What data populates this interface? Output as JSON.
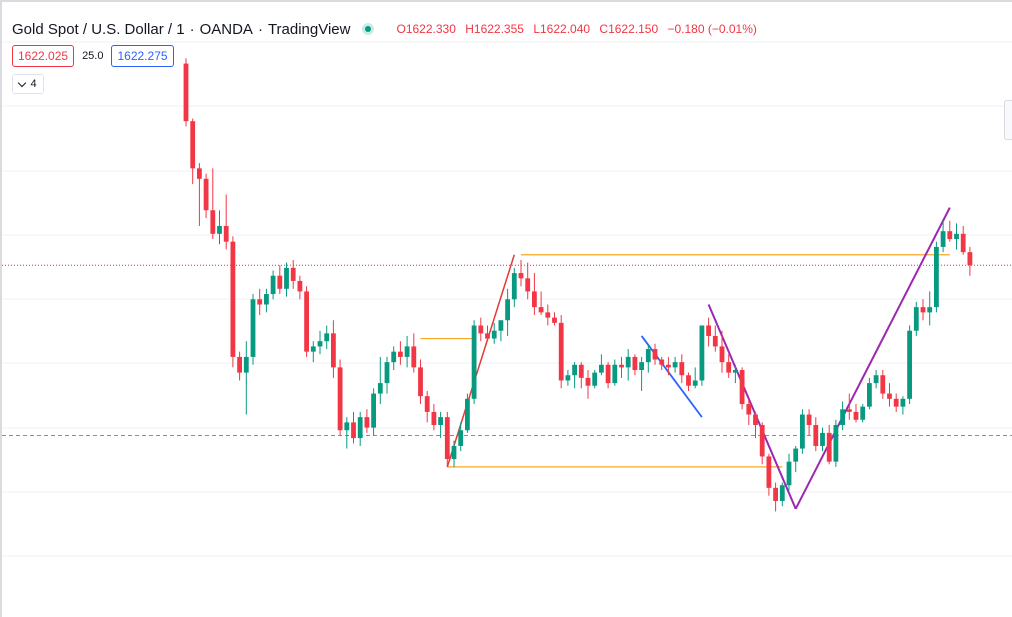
{
  "header": {
    "symbol": "Gold Spot / U.S. Dollar",
    "interval": "1",
    "broker": "OANDA",
    "platform": "TradingView",
    "separator": "·",
    "ohlc": [
      {
        "key": "O",
        "value": "1622.330"
      },
      {
        "key": "H",
        "value": "1622.355"
      },
      {
        "key": "L",
        "value": "1622.040"
      },
      {
        "key": "C",
        "value": "1622.150"
      }
    ],
    "change": "−0.180 (−0.01%)"
  },
  "trade": {
    "sell_price": "1622.025",
    "spread": "25.0",
    "buy_price": "1622.275"
  },
  "indicators": {
    "count": "4"
  },
  "colors": {
    "up": "#089981",
    "down": "#f23645",
    "orange": "#f5a623",
    "purple": "#9c27b0",
    "blue": "#2962ff",
    "red_line": "#e53935",
    "grid": "#eef0f3"
  },
  "chart_data": {
    "type": "candlestick",
    "grid": true,
    "candles": [
      [
        1629.6,
        1629.8,
        1627.2,
        1627.4
      ],
      [
        1627.4,
        1627.5,
        1625.0,
        1625.6
      ],
      [
        1625.6,
        1625.8,
        1623.4,
        1625.2
      ],
      [
        1625.2,
        1625.4,
        1623.7,
        1624.0
      ],
      [
        1624.0,
        1625.6,
        1622.9,
        1623.1
      ],
      [
        1623.1,
        1624.0,
        1622.7,
        1623.4
      ],
      [
        1623.4,
        1624.6,
        1622.5,
        1622.8
      ],
      [
        1622.8,
        1623.0,
        1618.0,
        1618.4
      ],
      [
        1618.4,
        1618.6,
        1617.5,
        1617.8
      ],
      [
        1617.8,
        1619.0,
        1616.2,
        1618.4
      ],
      [
        1618.4,
        1620.8,
        1618.1,
        1620.6
      ],
      [
        1620.6,
        1621.0,
        1620.0,
        1620.4
      ],
      [
        1620.4,
        1621.0,
        1620.1,
        1620.8
      ],
      [
        1620.8,
        1621.7,
        1620.6,
        1621.5
      ],
      [
        1621.5,
        1621.9,
        1620.8,
        1621.0
      ],
      [
        1621.0,
        1622.0,
        1620.7,
        1621.8
      ],
      [
        1621.8,
        1622.1,
        1621.0,
        1621.3
      ],
      [
        1621.3,
        1621.5,
        1620.6,
        1620.9
      ],
      [
        1620.9,
        1621.1,
        1618.4,
        1618.6
      ],
      [
        1618.6,
        1619.0,
        1618.2,
        1618.8
      ],
      [
        1618.8,
        1619.4,
        1618.5,
        1619.0
      ],
      [
        1619.0,
        1619.6,
        1618.7,
        1619.3
      ],
      [
        1619.3,
        1619.8,
        1617.6,
        1618.0
      ],
      [
        1618.0,
        1618.3,
        1615.4,
        1615.6
      ],
      [
        1615.6,
        1616.1,
        1614.9,
        1615.9
      ],
      [
        1615.9,
        1616.3,
        1615.1,
        1615.3
      ],
      [
        1615.3,
        1616.3,
        1615.0,
        1616.1
      ],
      [
        1616.1,
        1616.4,
        1615.5,
        1615.7
      ],
      [
        1615.7,
        1617.2,
        1615.4,
        1617.0
      ],
      [
        1617.0,
        1618.4,
        1616.6,
        1617.4
      ],
      [
        1617.4,
        1618.4,
        1617.0,
        1618.2
      ],
      [
        1618.2,
        1618.8,
        1617.9,
        1618.6
      ],
      [
        1618.6,
        1619.0,
        1618.1,
        1618.4
      ],
      [
        1618.4,
        1619.2,
        1618.0,
        1618.8
      ],
      [
        1618.8,
        1619.3,
        1617.8,
        1618.0
      ],
      [
        1618.0,
        1618.3,
        1616.6,
        1616.9
      ],
      [
        1616.9,
        1617.1,
        1615.9,
        1616.3
      ],
      [
        1616.3,
        1616.6,
        1615.6,
        1615.8
      ],
      [
        1615.8,
        1616.3,
        1615.3,
        1616.1
      ],
      [
        1616.1,
        1616.3,
        1614.2,
        1614.5
      ],
      [
        1614.5,
        1615.2,
        1614.2,
        1615.0
      ],
      [
        1615.0,
        1615.9,
        1614.8,
        1615.6
      ],
      [
        1615.6,
        1617.0,
        1615.5,
        1616.8
      ],
      [
        1616.8,
        1619.8,
        1616.6,
        1619.6
      ],
      [
        1619.6,
        1619.9,
        1619.0,
        1619.3
      ],
      [
        1619.3,
        1619.6,
        1619.0,
        1619.1
      ],
      [
        1619.1,
        1619.7,
        1618.9,
        1619.4
      ],
      [
        1619.4,
        1619.8,
        1619.0,
        1619.8
      ],
      [
        1619.8,
        1621.0,
        1619.2,
        1620.6
      ],
      [
        1620.6,
        1621.8,
        1620.3,
        1621.6
      ],
      [
        1621.6,
        1622.1,
        1621.1,
        1621.4
      ],
      [
        1621.4,
        1622.0,
        1620.6,
        1620.9
      ],
      [
        1620.9,
        1621.6,
        1620.0,
        1620.3
      ],
      [
        1620.3,
        1620.9,
        1620.0,
        1620.1
      ],
      [
        1620.1,
        1620.4,
        1619.6,
        1619.9
      ],
      [
        1619.9,
        1620.1,
        1619.6,
        1619.7
      ],
      [
        1619.7,
        1620.0,
        1617.2,
        1617.5
      ],
      [
        1617.5,
        1617.9,
        1617.3,
        1617.7
      ],
      [
        1617.7,
        1618.2,
        1617.2,
        1618.1
      ],
      [
        1618.1,
        1618.2,
        1617.2,
        1617.6
      ],
      [
        1617.6,
        1617.9,
        1616.8,
        1617.3
      ],
      [
        1617.3,
        1617.9,
        1617.2,
        1617.8
      ],
      [
        1617.8,
        1618.5,
        1617.7,
        1618.1
      ],
      [
        1618.1,
        1618.2,
        1617.2,
        1617.4
      ],
      [
        1617.4,
        1618.3,
        1617.3,
        1618.1
      ],
      [
        1618.1,
        1618.4,
        1617.6,
        1618.0
      ],
      [
        1618.0,
        1618.7,
        1617.5,
        1618.4
      ],
      [
        1618.4,
        1618.5,
        1617.7,
        1617.9
      ],
      [
        1617.9,
        1618.4,
        1617.1,
        1618.2
      ],
      [
        1618.2,
        1618.9,
        1617.8,
        1618.7
      ],
      [
        1618.7,
        1618.9,
        1618.1,
        1618.3
      ],
      [
        1618.3,
        1618.4,
        1617.9,
        1618.1
      ],
      [
        1618.1,
        1618.4,
        1617.7,
        1618.0
      ],
      [
        1618.0,
        1618.4,
        1617.8,
        1618.2
      ],
      [
        1618.2,
        1618.5,
        1617.4,
        1617.7
      ],
      [
        1617.7,
        1617.8,
        1617.1,
        1617.3
      ],
      [
        1617.3,
        1618.0,
        1617.2,
        1617.5
      ],
      [
        1617.5,
        1619.6,
        1617.3,
        1619.6
      ],
      [
        1619.6,
        1619.9,
        1618.8,
        1619.2
      ],
      [
        1619.2,
        1619.6,
        1618.6,
        1618.8
      ],
      [
        1618.8,
        1619.4,
        1617.8,
        1618.2
      ],
      [
        1618.2,
        1618.5,
        1617.6,
        1617.8
      ],
      [
        1617.8,
        1618.1,
        1617.4,
        1617.9
      ],
      [
        1617.9,
        1618.0,
        1616.4,
        1616.6
      ],
      [
        1616.6,
        1616.8,
        1615.8,
        1616.2
      ],
      [
        1616.2,
        1616.3,
        1615.3,
        1615.8
      ],
      [
        1615.8,
        1615.9,
        1614.3,
        1614.6
      ],
      [
        1614.6,
        1614.7,
        1613.1,
        1613.4
      ],
      [
        1613.4,
        1613.6,
        1612.5,
        1612.9
      ],
      [
        1612.9,
        1613.6,
        1612.7,
        1613.5
      ],
      [
        1613.5,
        1614.7,
        1613.3,
        1614.4
      ],
      [
        1614.4,
        1615.0,
        1614.0,
        1614.9
      ],
      [
        1614.9,
        1616.4,
        1614.7,
        1616.2
      ],
      [
        1616.2,
        1616.4,
        1615.4,
        1615.8
      ],
      [
        1615.8,
        1616.1,
        1614.8,
        1615.0
      ],
      [
        1615.0,
        1615.7,
        1614.8,
        1615.5
      ],
      [
        1615.5,
        1615.8,
        1614.3,
        1614.4
      ],
      [
        1614.4,
        1616.0,
        1614.2,
        1615.8
      ],
      [
        1615.8,
        1616.7,
        1615.6,
        1616.4
      ],
      [
        1616.4,
        1617.0,
        1616.0,
        1616.3
      ],
      [
        1616.3,
        1616.6,
        1615.9,
        1616.0
      ],
      [
        1616.0,
        1616.6,
        1615.9,
        1616.5
      ],
      [
        1616.5,
        1617.6,
        1616.4,
        1617.4
      ],
      [
        1617.4,
        1617.9,
        1617.2,
        1617.7
      ],
      [
        1617.7,
        1617.9,
        1616.8,
        1617.0
      ],
      [
        1617.0,
        1617.4,
        1616.5,
        1616.8
      ],
      [
        1616.8,
        1617.0,
        1616.3,
        1616.5
      ],
      [
        1616.5,
        1616.9,
        1616.2,
        1616.8
      ],
      [
        1616.8,
        1619.6,
        1616.6,
        1619.4
      ],
      [
        1619.4,
        1620.5,
        1619.2,
        1620.3
      ],
      [
        1620.3,
        1620.6,
        1619.8,
        1620.1
      ],
      [
        1620.1,
        1620.9,
        1619.6,
        1620.3
      ],
      [
        1620.3,
        1622.8,
        1620.1,
        1622.6
      ],
      [
        1622.6,
        1623.6,
        1622.4,
        1623.2
      ],
      [
        1623.2,
        1623.6,
        1622.8,
        1622.9
      ],
      [
        1622.9,
        1623.5,
        1622.5,
        1623.1
      ],
      [
        1623.1,
        1623.4,
        1622.3,
        1622.4
      ],
      [
        1622.4,
        1622.6,
        1621.5,
        1621.9
      ]
    ],
    "lines": [
      {
        "name": "orange-level-1",
        "color": "orange",
        "points": [
          [
            1622.3
          ],
          [
            1622.3
          ]
        ]
      },
      {
        "name": "orange-level-2",
        "color": "orange",
        "points": [
          [
            1619.1
          ],
          [
            1619.1
          ]
        ]
      },
      {
        "name": "orange-level-3",
        "color": "orange",
        "points": [
          [
            1614.2
          ],
          [
            1614.2
          ]
        ]
      }
    ],
    "horizontal_reference": {
      "dotted_red": 1621.9,
      "dashed_gray": 1615.4
    }
  }
}
